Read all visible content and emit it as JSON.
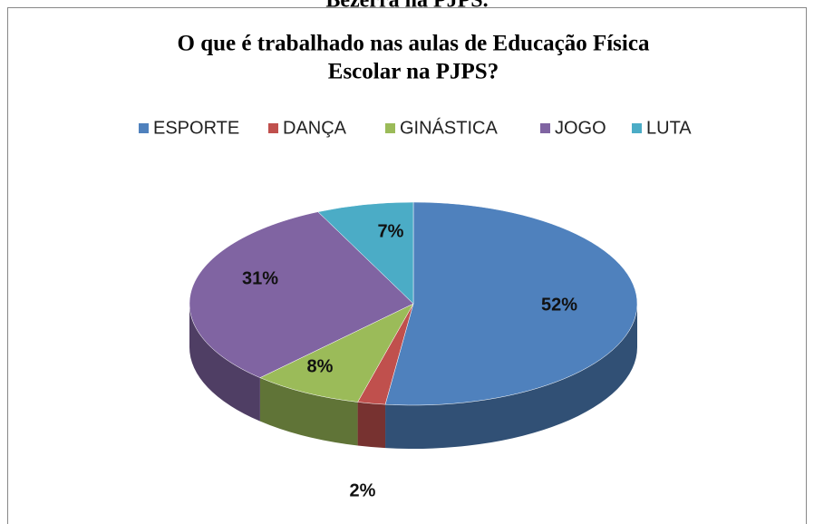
{
  "caption": "Bezerra na PJPS.",
  "chart_data": {
    "type": "pie",
    "title": [
      "O que é trabalhado nas aulas de Educação Física",
      "Escolar na PJPS?"
    ],
    "categories": [
      "ESPORTE",
      "DANÇA",
      "GINÁSTICA",
      "JOGO",
      "LUTA"
    ],
    "values": [
      52,
      2,
      8,
      31,
      7
    ],
    "value_labels": [
      "52%",
      "2%",
      "8%",
      "31%",
      "7%"
    ],
    "colors": [
      "#4f81bd",
      "#c0504d",
      "#9bbb59",
      "#8064a2",
      "#4bacc6"
    ],
    "legend": "top"
  }
}
